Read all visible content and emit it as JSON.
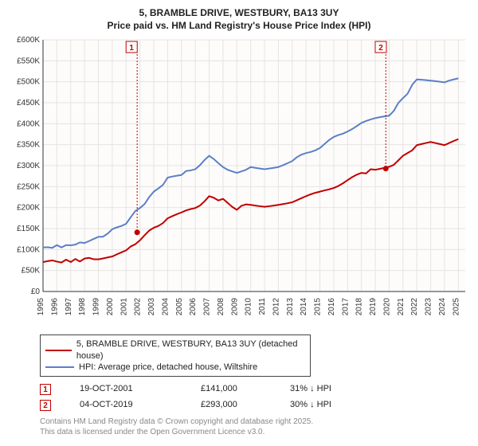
{
  "title_line1": "5, BRAMBLE DRIVE, WESTBURY, BA13 3UY",
  "title_line2": "Price paid vs. HM Land Registry's House Price Index (HPI)",
  "chart": {
    "type": "line",
    "background_color": "#ffffff",
    "plot_bg": "#fdfcfa",
    "grid_color": "#e4e4e4",
    "axis_color": "#333333",
    "x_years": [
      1995,
      1996,
      1997,
      1998,
      1999,
      2000,
      2001,
      2002,
      2003,
      2004,
      2005,
      2006,
      2007,
      2008,
      2009,
      2010,
      2011,
      2012,
      2013,
      2014,
      2015,
      2016,
      2017,
      2018,
      2019,
      2020,
      2021,
      2022,
      2023,
      2024,
      2025
    ],
    "xlim": [
      1995,
      2025.5
    ],
    "ylim": [
      0,
      600000
    ],
    "ytick_step": 50000,
    "y_ticks": [
      "£0",
      "£50K",
      "£100K",
      "£150K",
      "£200K",
      "£250K",
      "£300K",
      "£350K",
      "£400K",
      "£450K",
      "£500K",
      "£550K",
      "£600K"
    ],
    "tick_fontsize": 10,
    "tick_color": "#333333",
    "series": [
      {
        "name": "red",
        "color": "#c00000",
        "width": 2,
        "values": [
          70000,
          71000,
          73000,
          76000,
          80000,
          85000,
          95000,
          125000,
          150000,
          175000,
          185000,
          200000,
          225000,
          218000,
          198000,
          210000,
          205000,
          210000,
          215000,
          225000,
          235000,
          250000,
          265000,
          280000,
          293000,
          298000,
          320000,
          350000,
          355000,
          350000,
          360000
        ]
      },
      {
        "name": "blue",
        "color": "#5b7fc7",
        "width": 2,
        "values": [
          105000,
          107000,
          110000,
          118000,
          128000,
          145000,
          165000,
          200000,
          235000,
          268000,
          278000,
          295000,
          320000,
          300000,
          280000,
          300000,
          295000,
          300000,
          310000,
          330000,
          345000,
          365000,
          385000,
          400000,
          410000,
          420000,
          460000,
          505000,
          500000,
          495000,
          510000
        ]
      }
    ],
    "sale_markers": [
      {
        "num": "1",
        "x": 2001.8,
        "y": 141000,
        "label_x": 2001.4
      },
      {
        "num": "2",
        "x": 2019.76,
        "y": 293000,
        "label_x": 2019.4
      }
    ],
    "marker_color": "#c00000",
    "marker_box_border": "#c00000",
    "marker_box_text": "#c00000"
  },
  "legend": {
    "items": [
      {
        "color": "#c00000",
        "label": "5, BRAMBLE DRIVE, WESTBURY, BA13 3UY (detached house)"
      },
      {
        "color": "#5b7fc7",
        "label": "HPI: Average price, detached house, Wiltshire"
      }
    ]
  },
  "sales": [
    {
      "num": "1",
      "date": "19-OCT-2001",
      "price": "£141,000",
      "hpi": "31% ↓ HPI"
    },
    {
      "num": "2",
      "date": "04-OCT-2019",
      "price": "£293,000",
      "hpi": "30% ↓ HPI"
    }
  ],
  "footnote_line1": "Contains HM Land Registry data © Crown copyright and database right 2025.",
  "footnote_line2": "This data is licensed under the Open Government Licence v3.0."
}
